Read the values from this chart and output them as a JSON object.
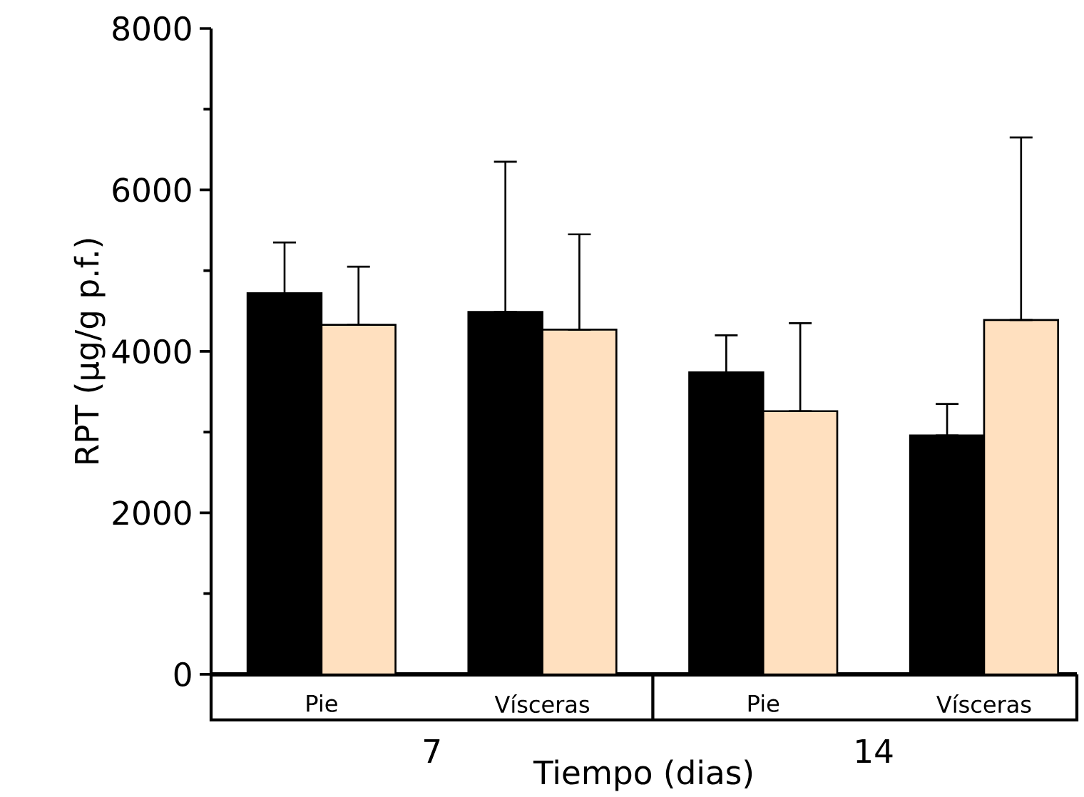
{
  "chart_data": {
    "type": "bar",
    "xlabel": "Tiempo (dias)",
    "ylabel": "RPT (µg/g p.f.)",
    "categories": [
      "Pie",
      "Vísceras",
      "Pie",
      "Vísceras"
    ],
    "annotations": [
      "7",
      "14"
    ],
    "series": [
      {
        "color": "#000000",
        "values": [
          4720,
          4490,
          3740,
          2960
        ],
        "errors": [
          [
            4720,
            5350
          ],
          [
            4490,
            6350
          ],
          [
            3740,
            4200
          ],
          [
            2960,
            3350
          ]
        ]
      },
      {
        "color": "#ffe0bf",
        "values": [
          4330,
          4270,
          3260,
          4390
        ],
        "errors": [
          [
            4330,
            5050
          ],
          [
            4270,
            5450
          ],
          [
            3260,
            4350
          ],
          [
            4390,
            6650
          ]
        ]
      }
    ],
    "ylim": [
      0,
      8000
    ],
    "yticks": [
      0,
      2000,
      4000,
      6000,
      8000
    ]
  }
}
